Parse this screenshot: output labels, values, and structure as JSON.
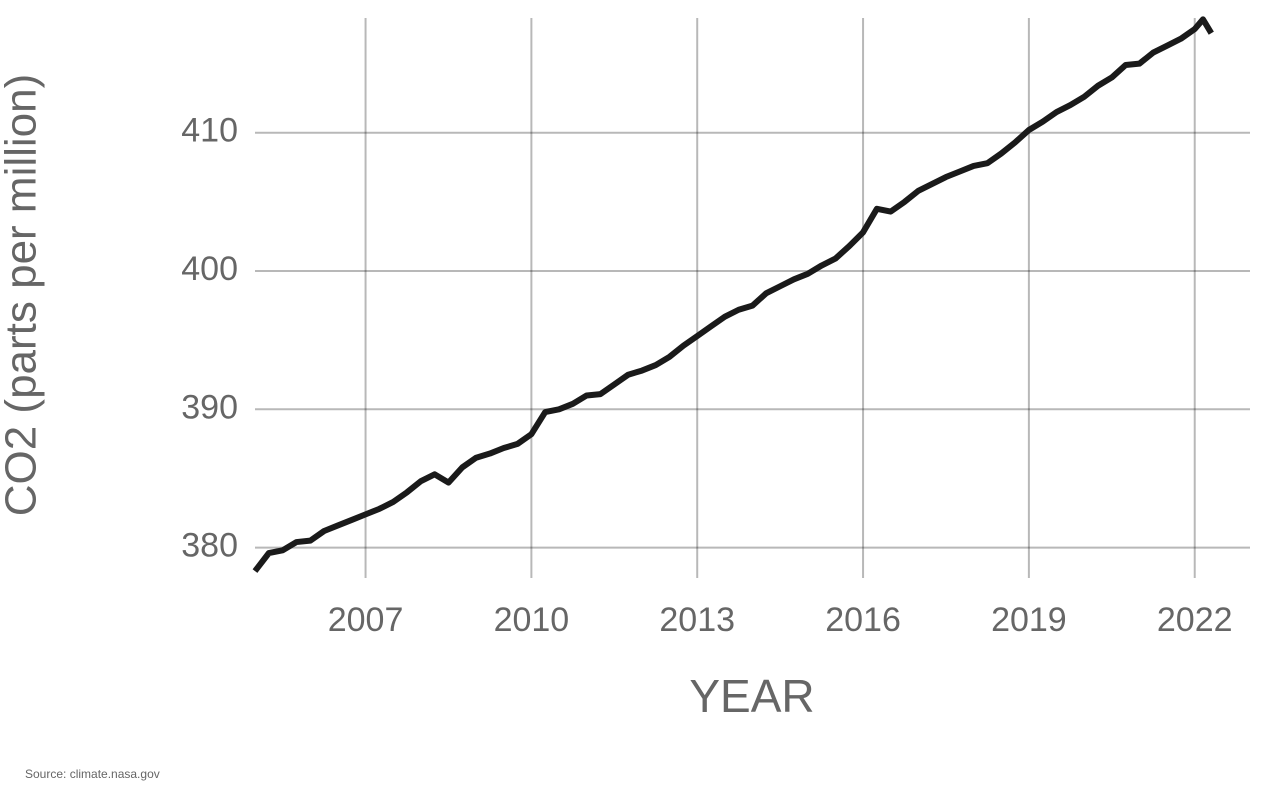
{
  "chart_data": {
    "type": "line",
    "y_label": "CO2 (parts per million)",
    "x_label": "YEAR",
    "source": "Source: climate.nasa.gov",
    "color": "#1a1a1a",
    "grid": true,
    "x": [
      2005.0,
      2005.25,
      2005.5,
      2005.75,
      2006.0,
      2006.25,
      2006.5,
      2006.75,
      2007.0,
      2007.25,
      2007.5,
      2007.75,
      2008.0,
      2008.25,
      2008.5,
      2008.75,
      2009.0,
      2009.25,
      2009.5,
      2009.75,
      2010.0,
      2010.25,
      2010.5,
      2010.75,
      2011.0,
      2011.25,
      2011.5,
      2011.75,
      2012.0,
      2012.25,
      2012.5,
      2012.75,
      2013.0,
      2013.25,
      2013.5,
      2013.75,
      2014.0,
      2014.25,
      2014.5,
      2014.75,
      2015.0,
      2015.25,
      2015.5,
      2015.75,
      2016.0,
      2016.25,
      2016.5,
      2016.75,
      2017.0,
      2017.25,
      2017.5,
      2017.75,
      2018.0,
      2018.25,
      2018.5,
      2018.75,
      2019.0,
      2019.25,
      2019.5,
      2019.75,
      2020.0,
      2020.25,
      2020.5,
      2020.75,
      2021.0,
      2021.25,
      2021.5,
      2021.75,
      2022.0,
      2022.15,
      2022.3
    ],
    "values": [
      378.3,
      379.6,
      379.8,
      380.4,
      380.5,
      381.2,
      381.6,
      382.0,
      382.4,
      382.8,
      383.3,
      384.0,
      384.8,
      385.3,
      384.7,
      385.8,
      386.5,
      386.8,
      387.2,
      387.5,
      388.2,
      389.8,
      390.0,
      390.4,
      391.0,
      391.1,
      391.8,
      392.5,
      392.8,
      393.2,
      393.8,
      394.6,
      395.3,
      396.0,
      396.7,
      397.2,
      397.5,
      398.4,
      398.9,
      399.4,
      399.8,
      400.4,
      400.9,
      401.8,
      402.8,
      404.5,
      404.3,
      405.0,
      405.8,
      406.3,
      406.8,
      407.2,
      407.6,
      407.8,
      408.5,
      409.3,
      410.2,
      410.8,
      411.5,
      412.0,
      412.6,
      413.4,
      414.0,
      414.9,
      415.0,
      415.8,
      416.3,
      416.8,
      417.5,
      418.2,
      417.2
    ],
    "xlim": [
      2005,
      2023
    ],
    "ylim": [
      377.8,
      418.3
    ],
    "xticks": [
      2007,
      2010,
      2013,
      2016,
      2019,
      2022
    ],
    "yticks": [
      380,
      390,
      400,
      410
    ]
  }
}
